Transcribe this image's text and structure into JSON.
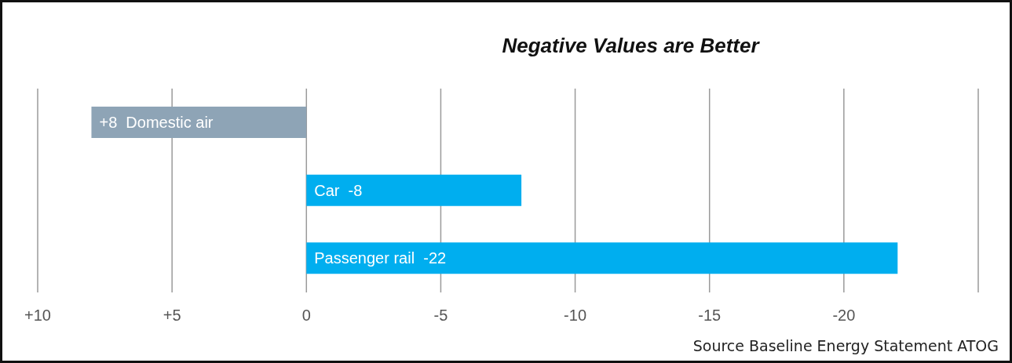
{
  "chart_data": {
    "type": "bar",
    "orientation": "horizontal",
    "title": "Negative Values are Better",
    "categories": [
      "Domestic air",
      "Car",
      "Passenger rail"
    ],
    "values": [
      8,
      -8,
      -22
    ],
    "colors": [
      "#8ea4b6",
      "#00aeef",
      "#00aeef"
    ],
    "value_labels": [
      "+8",
      "-8",
      "-22"
    ],
    "xlim": [
      10,
      -25
    ],
    "xticks": [
      {
        "value": 10,
        "label": "+10"
      },
      {
        "value": 5,
        "label": "+5"
      },
      0,
      -5,
      -10,
      -15,
      -20,
      {
        "value": -25,
        "label": null
      }
    ],
    "grid": "x",
    "annotations": [
      "Source Baseline Energy Statement ATOG"
    ]
  }
}
